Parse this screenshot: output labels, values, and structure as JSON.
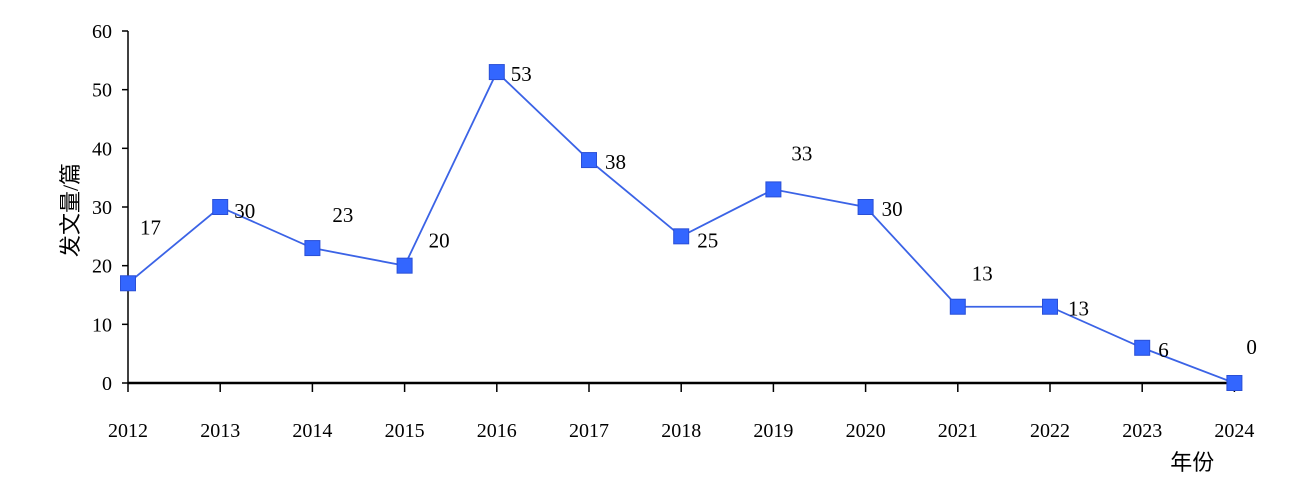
{
  "chart_data": {
    "type": "line",
    "title": "",
    "xlabel": "年份",
    "ylabel": "发文量/篇",
    "ylim": [
      0,
      60
    ],
    "yticks": [
      0,
      10,
      20,
      30,
      40,
      50,
      60
    ],
    "categories": [
      "2012",
      "2013",
      "2014",
      "2015",
      "2016",
      "2017",
      "2018",
      "2019",
      "2020",
      "2021",
      "2022",
      "2023",
      "2024"
    ],
    "series": [
      {
        "values": [
          17,
          30,
          23,
          20,
          53,
          38,
          25,
          33,
          30,
          13,
          13,
          6,
          0
        ],
        "labels": [
          "17",
          "30",
          "23",
          "20",
          "53",
          "38",
          "25",
          "33",
          "30",
          "13",
          "13",
          "6",
          "0"
        ]
      }
    ],
    "grid": false,
    "legend": "none",
    "colors": {
      "line": "#3b63e6",
      "marker": "#3366ff",
      "axis": "#000000"
    }
  }
}
